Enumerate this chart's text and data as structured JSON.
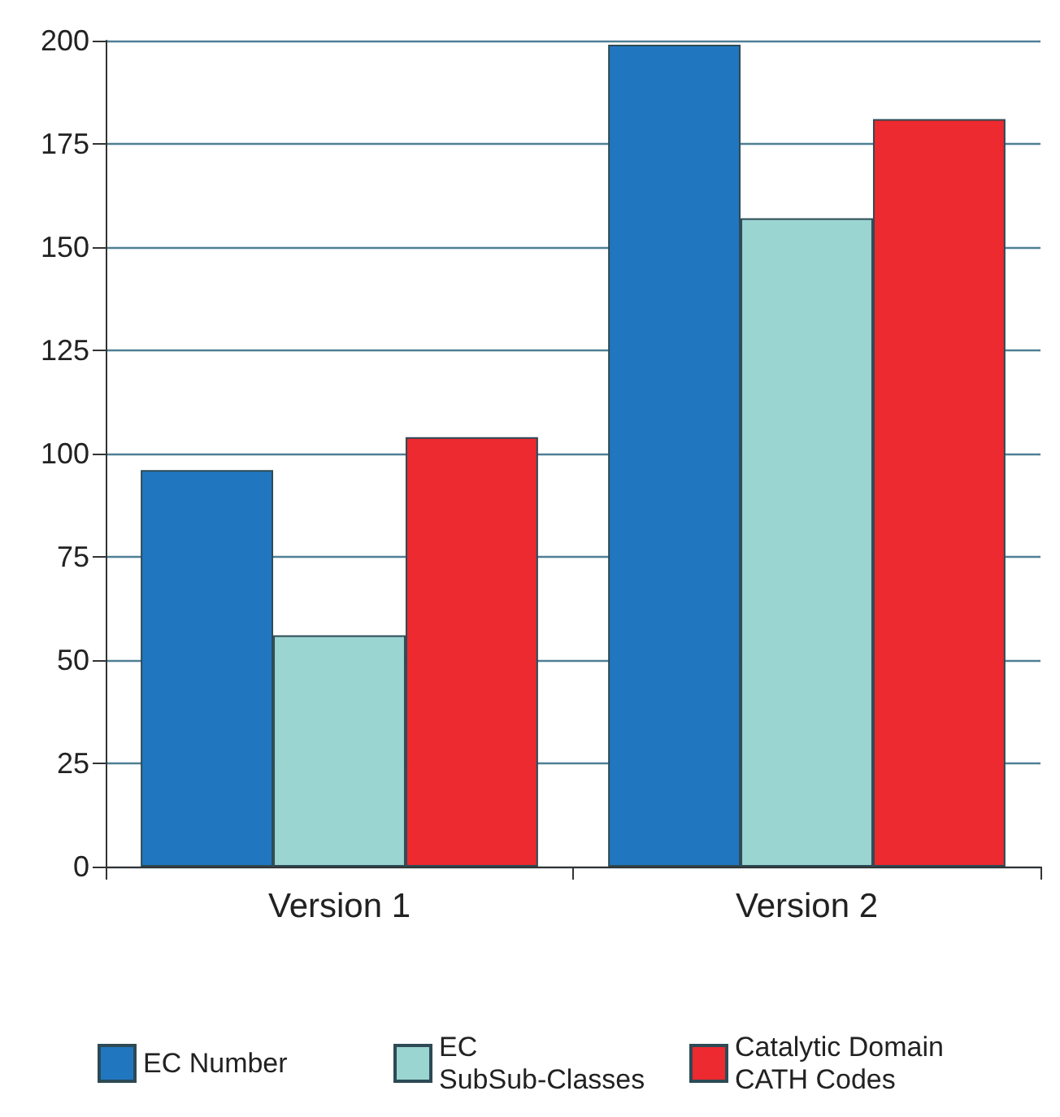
{
  "chart_data": {
    "type": "bar",
    "categories": [
      "Version 1",
      "Version 2"
    ],
    "series": [
      {
        "name": "EC Number",
        "color": "#2077bf",
        "values": [
          96,
          199
        ]
      },
      {
        "name": "EC SubSub-Classes",
        "color": "#9bd5d2",
        "values": [
          56,
          157
        ]
      },
      {
        "name": "Catalytic Domain CATH Codes",
        "color": "#ec2a2f",
        "values": [
          104,
          181
        ]
      }
    ],
    "ylim": [
      0,
      200
    ],
    "yticks": [
      0,
      25,
      50,
      75,
      100,
      125,
      150,
      175,
      200
    ],
    "grid": "y",
    "legend": "bottom"
  }
}
